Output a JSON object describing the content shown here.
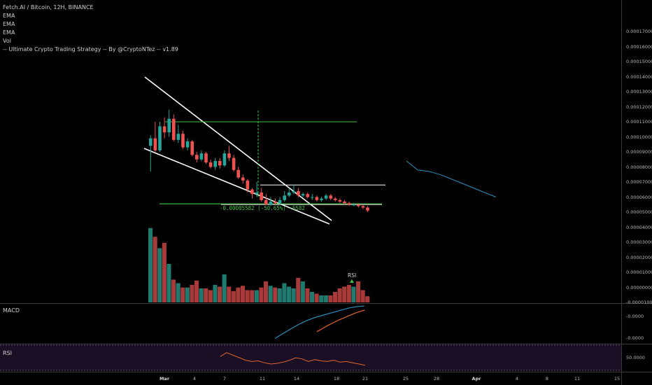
{
  "legend": {
    "symbol": "Fetch.AI / Bitcoin, 12H, BINANCE",
    "lines": [
      "EMA",
      "EMA",
      "EMA",
      "Vol",
      "-- Ultimate Crypto Trading Strategy -- By @CryptoNTez -- v1.89"
    ]
  },
  "panes": {
    "macd_label": "MACD",
    "rsi_label": "RSI",
    "rsi_tag": "RSI"
  },
  "measure_text": "-0.00005582 (-50.65%) -5582",
  "colors": {
    "bull": "#26a69a",
    "bear": "#ef5350",
    "vol_bull": "#1f7a70",
    "vol_bear": "#a83a3a",
    "ema": "#2a8fbd",
    "level": "#3fc43f",
    "rsi_band": "#1a0f24"
  },
  "price_axis": [
    "0.00017000",
    "0.00016000",
    "0.00015000",
    "0.00014000",
    "0.00013000",
    "0.00012000",
    "0.00011000",
    "0.00010000",
    "0.00009000",
    "0.00008000",
    "0.00007000",
    "0.00006000",
    "0.00005000",
    "0.00004000",
    "0.00003000",
    "0.00002000",
    "0.00001000",
    "0.00000000",
    "-0.00001000"
  ],
  "macd_axis": [
    "-0.0000",
    "-0.0000"
  ],
  "rsi_axis": [
    "50.0000"
  ],
  "x_axis": [
    {
      "label": "Mar",
      "bold": true
    },
    {
      "label": "4"
    },
    {
      "label": "7"
    },
    {
      "label": "11"
    },
    {
      "label": "14"
    },
    {
      "label": "18"
    },
    {
      "label": "21"
    },
    {
      "label": "25"
    },
    {
      "label": "28"
    },
    {
      "label": "Apr",
      "bold": true
    },
    {
      "label": "4"
    },
    {
      "label": "8"
    },
    {
      "label": "11"
    },
    {
      "label": "15"
    }
  ],
  "chart_data": {
    "type": "candlestick",
    "title": "Fetch.AI / Bitcoin, 12H, BINANCE",
    "ylim": [
      -1e-05,
      0.00017
    ],
    "candles": [
      [
        9.4e-05,
        9.9e-05,
        7.7e-05,
        0.000101
      ],
      [
        9.9e-05,
        9.1e-05,
        9e-05,
        0.00011
      ],
      [
        9.1e-05,
        0.000107,
        9e-05,
        0.00011
      ],
      [
        0.000107,
        0.000103,
        9.9e-05,
        0.000113
      ],
      [
        0.000103,
        0.000112,
        0.0001,
        0.000118
      ],
      [
        0.000112,
        9.8e-05,
        9.7e-05,
        0.000115
      ],
      [
        9.8e-05,
        0.000102,
        9.6e-05,
        0.000108
      ],
      [
        0.000102,
        9.3e-05,
        9.2e-05,
        0.000104
      ],
      [
        9.3e-05,
        9.7e-05,
        9.1e-05,
        9.9e-05
      ],
      [
        9.7e-05,
        8.8e-05,
        8.7e-05,
        9.8e-05
      ],
      [
        8.8e-05,
        8.5e-05,
        8.3e-05,
        9e-05
      ],
      [
        8.5e-05,
        8.9e-05,
        8.4e-05,
        9.1e-05
      ],
      [
        8.9e-05,
        8.3e-05,
        8.2e-05,
        9e-05
      ],
      [
        8.3e-05,
        8e-05,
        7.9e-05,
        8.5e-05
      ],
      [
        8e-05,
        8.4e-05,
        7.8e-05,
        8.6e-05
      ],
      [
        8.4e-05,
        8.1e-05,
        7.9e-05,
        8.6e-05
      ],
      [
        8.1e-05,
        8.9e-05,
        8e-05,
        9.1e-05
      ],
      [
        8.9e-05,
        8.6e-05,
        8.4e-05,
        9.4e-05
      ],
      [
        8.6e-05,
        7.8e-05,
        7.7e-05,
        8.8e-05
      ],
      [
        7.8e-05,
        7.3e-05,
        7.2e-05,
        8e-05
      ],
      [
        7.3e-05,
        7.1e-05,
        6.9e-05,
        7.5e-05
      ],
      [
        7.1e-05,
        6.5e-05,
        6.3e-05,
        7.2e-05
      ],
      [
        6.5e-05,
        6.2e-05,
        5.9e-05,
        6.6e-05
      ],
      [
        6.2e-05,
        6.3e-05,
        6e-05,
        7e-05
      ],
      [
        6.3e-05,
        5.8e-05,
        5.7e-05,
        6.6e-05
      ],
      [
        5.8e-05,
        5.5e-05,
        5.5e-05,
        6.2e-05
      ],
      [
        5.5e-05,
        5.7e-05,
        5.4e-05,
        6e-05
      ],
      [
        5.7e-05,
        5.6e-05,
        5.5e-05,
        5.9e-05
      ],
      [
        5.6e-05,
        5.8e-05,
        5.5e-05,
        6e-05
      ],
      [
        5.8e-05,
        6.1e-05,
        5.7e-05,
        6.4e-05
      ],
      [
        6.1e-05,
        6.3e-05,
        6e-05,
        6.6e-05
      ],
      [
        6.3e-05,
        6.4e-05,
        6.2e-05,
        6.8e-05
      ],
      [
        6.4e-05,
        6.1e-05,
        6e-05,
        6.6e-05
      ],
      [
        6.1e-05,
        6.2e-05,
        6e-05,
        6.3e-05
      ],
      [
        6.2e-05,
        6e-05,
        5.9e-05,
        6.3e-05
      ],
      [
        6e-05,
        6e-05,
        5.8e-05,
        6.2e-05
      ],
      [
        6e-05,
        5.8e-05,
        5.7e-05,
        6.1e-05
      ],
      [
        5.8e-05,
        5.9e-05,
        5.7e-05,
        6e-05
      ],
      [
        5.9e-05,
        6.1e-05,
        5.8e-05,
        6.2e-05
      ],
      [
        6.1e-05,
        5.9e-05,
        5.8e-05,
        6.2e-05
      ],
      [
        5.9e-05,
        5.8e-05,
        5.7e-05,
        6e-05
      ],
      [
        5.8e-05,
        5.7e-05,
        5.6e-05,
        5.9e-05
      ],
      [
        5.7e-05,
        5.6e-05,
        5.5e-05,
        5.8e-05
      ],
      [
        5.6e-05,
        5.5e-05,
        5.4e-05,
        5.7e-05
      ],
      [
        5.5e-05,
        5.5e-05,
        5.4e-05,
        5.6e-05
      ],
      [
        5.5e-05,
        5.4e-05,
        5.3e-05,
        5.6e-05
      ],
      [
        5.4e-05,
        5.3e-05,
        5.2e-05,
        5.5e-05
      ],
      [
        5.3e-05,
        5.1e-05,
        5e-05,
        5.4e-05
      ]
    ],
    "volume": [
      85,
      75,
      62,
      68,
      44,
      26,
      22,
      17,
      17,
      20,
      25,
      16,
      16,
      14,
      20,
      18,
      32,
      18,
      13,
      17,
      19,
      14,
      14,
      14,
      17,
      24,
      19,
      17,
      16,
      22,
      18,
      16,
      28,
      24,
      16,
      12,
      10,
      8,
      8,
      8,
      12,
      16,
      18,
      20,
      18,
      24,
      14,
      7
    ],
    "volume_max": 100,
    "levels": [
      0.00011,
      6.8e-05,
      5.55e-05
    ],
    "ema_projection": [
      8.4e-05,
      7.8e-05,
      7.7e-05,
      7.5e-05,
      7.2e-05,
      6.9e-05,
      6.6e-05,
      6.3e-05,
      6e-05
    ],
    "macd": [
      0.12,
      0.25,
      0.38,
      0.5,
      0.6,
      0.68,
      0.74,
      0.8,
      0.86,
      0.92,
      0.96,
      0.98
    ],
    "signal": [
      0.3,
      0.38,
      0.46,
      0.53,
      0.6,
      0.66,
      0.72,
      0.78,
      0.83,
      0.87
    ],
    "rsi": [
      52,
      58,
      54,
      50,
      46,
      44,
      45,
      42,
      40,
      41,
      43,
      46,
      50,
      48,
      44,
      47,
      45,
      44,
      46,
      43,
      44,
      42,
      40,
      38
    ]
  }
}
